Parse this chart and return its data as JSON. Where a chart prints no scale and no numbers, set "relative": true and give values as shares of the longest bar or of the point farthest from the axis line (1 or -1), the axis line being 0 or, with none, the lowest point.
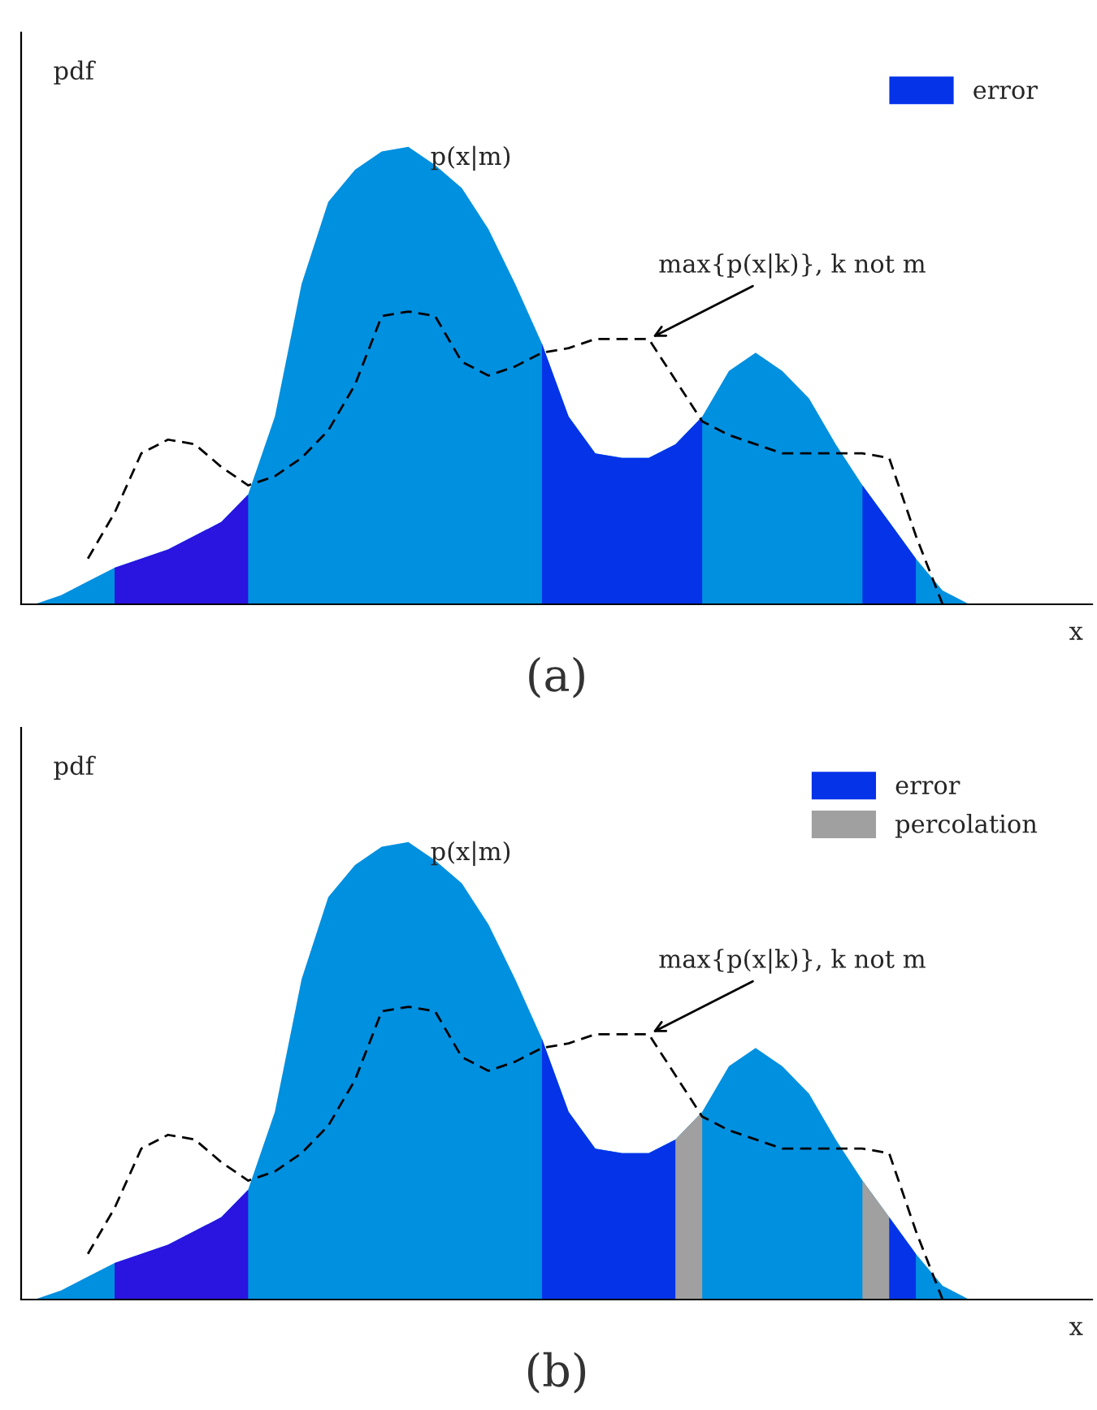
{
  "chart_data": [
    {
      "type": "area",
      "title": "(a)",
      "relative": true,
      "legend": "top right",
      "categories": [
        null,
        null,
        null,
        null,
        null,
        null,
        null,
        null,
        null,
        null,
        null,
        null,
        null,
        null,
        null,
        null,
        null,
        null,
        null,
        null,
        null,
        null,
        null,
        null,
        null,
        null,
        null,
        null,
        null,
        null,
        null,
        null,
        null,
        null,
        null,
        null
      ],
      "series": [
        {
          "color": "#0090e0",
          "values": [
            0,
            0.02,
            0.05,
            0.08,
            0.1,
            0.12,
            0.15,
            0.18,
            0.24,
            0.41,
            0.7,
            0.88,
            0.95,
            0.99,
            1.0,
            0.96,
            0.91,
            0.82,
            0.7,
            0.57,
            0.41,
            0.33,
            0.32,
            0.32,
            0.35,
            0.41,
            0.51,
            0.55,
            0.51,
            0.45,
            0.35,
            0.26,
            0.18,
            0.1,
            0.03,
            0
          ]
        },
        {
          "name": "error",
          "color": "#0433e8",
          "values": [
            null,
            null,
            null,
            null,
            null,
            null,
            null,
            null,
            null,
            null,
            null,
            null,
            null,
            null,
            null,
            null,
            null,
            null,
            null,
            0.57,
            0.41,
            0.33,
            0.32,
            0.32,
            0.35,
            0.41,
            null,
            null,
            null,
            null,
            null,
            0.26,
            0.18,
            0.1,
            null,
            null
          ]
        },
        {
          "color": "#2a14e0",
          "values": [
            null,
            null,
            null,
            0.08,
            0.1,
            0.12,
            0.15,
            0.18,
            0.24,
            null,
            null,
            null,
            null,
            null,
            null,
            null,
            null,
            null,
            null,
            null,
            null,
            null,
            null,
            null,
            null,
            null,
            null,
            null,
            null,
            null,
            null,
            null,
            null,
            null,
            null,
            null
          ]
        },
        {
          "type": "line",
          "line_style": "dashed",
          "color": "#000000",
          "values": [
            null,
            null,
            0.1,
            0.2,
            0.33,
            0.36,
            0.35,
            0.3,
            0.26,
            0.28,
            0.32,
            0.38,
            0.48,
            0.63,
            0.64,
            0.63,
            0.53,
            0.5,
            0.52,
            0.55,
            0.56,
            0.58,
            0.58,
            0.58,
            0.49,
            0.4,
            0.37,
            0.35,
            0.33,
            0.33,
            0.33,
            0.33,
            0.32,
            0.15,
            0,
            null
          ]
        }
      ],
      "annotations": [
        "pdf",
        "x",
        "p(x|m)",
        "max{p(x|k)}, k not m"
      ]
    },
    {
      "type": "area",
      "title": "(b)",
      "relative": true,
      "legend": "top right",
      "categories": [
        null,
        null,
        null,
        null,
        null,
        null,
        null,
        null,
        null,
        null,
        null,
        null,
        null,
        null,
        null,
        null,
        null,
        null,
        null,
        null,
        null,
        null,
        null,
        null,
        null,
        null,
        null,
        null,
        null,
        null,
        null,
        null,
        null,
        null,
        null,
        null
      ],
      "series": [
        {
          "color": "#0090e0",
          "values": [
            0,
            0.02,
            0.05,
            0.08,
            0.1,
            0.12,
            0.15,
            0.18,
            0.24,
            0.41,
            0.7,
            0.88,
            0.95,
            0.99,
            1.0,
            0.96,
            0.91,
            0.82,
            0.7,
            0.57,
            0.41,
            0.33,
            0.32,
            0.32,
            0.35,
            0.41,
            0.51,
            0.55,
            0.51,
            0.45,
            0.35,
            0.26,
            0.18,
            0.1,
            0.03,
            0
          ]
        },
        {
          "name": "error",
          "color": "#0433e8",
          "values": [
            null,
            null,
            null,
            null,
            null,
            null,
            null,
            null,
            null,
            null,
            null,
            null,
            null,
            null,
            null,
            null,
            null,
            null,
            null,
            0.57,
            0.41,
            0.33,
            0.32,
            0.32,
            0.35,
            null,
            null,
            null,
            null,
            null,
            null,
            null,
            0.18,
            0.1,
            null,
            null
          ]
        },
        {
          "name": "percolation",
          "color": "#a0a0a0",
          "values": [
            null,
            null,
            null,
            null,
            null,
            null,
            null,
            null,
            null,
            null,
            null,
            null,
            null,
            null,
            null,
            null,
            null,
            null,
            null,
            null,
            null,
            null,
            null,
            null,
            0.35,
            0.41,
            null,
            null,
            null,
            null,
            null,
            0.26,
            0.18,
            null,
            null,
            null
          ]
        },
        {
          "color": "#2a14e0",
          "values": [
            null,
            null,
            null,
            0.08,
            0.1,
            0.12,
            0.15,
            0.18,
            0.24,
            null,
            null,
            null,
            null,
            null,
            null,
            null,
            null,
            null,
            null,
            null,
            null,
            null,
            null,
            null,
            null,
            null,
            null,
            null,
            null,
            null,
            null,
            null,
            null,
            null,
            null,
            null
          ]
        },
        {
          "type": "line",
          "line_style": "dashed",
          "color": "#000000",
          "values": [
            null,
            null,
            0.1,
            0.2,
            0.33,
            0.36,
            0.35,
            0.3,
            0.26,
            0.28,
            0.32,
            0.38,
            0.48,
            0.63,
            0.64,
            0.63,
            0.53,
            0.5,
            0.52,
            0.55,
            0.56,
            0.58,
            0.58,
            0.58,
            0.49,
            0.4,
            0.37,
            0.35,
            0.33,
            0.33,
            0.33,
            0.33,
            0.32,
            0.15,
            0,
            null
          ]
        }
      ],
      "annotations": [
        "pdf",
        "x",
        "p(x|m)",
        "max{p(x|k)}, k not m"
      ]
    }
  ]
}
